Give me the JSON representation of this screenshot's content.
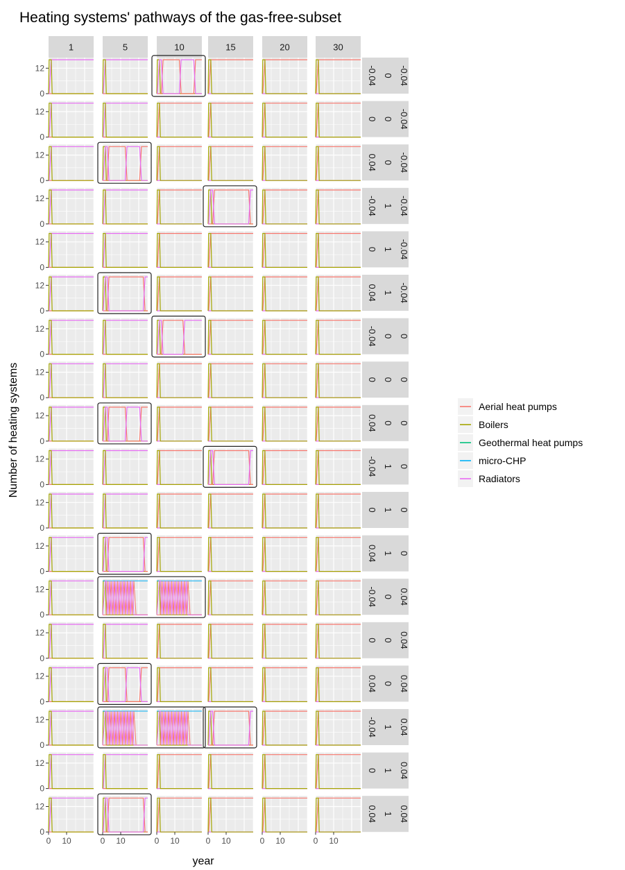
{
  "chart_data": {
    "type": "line",
    "title": "Heating systems' pathways of the gas-free-subset",
    "xlabel": "year",
    "ylabel": "Number of heating systems",
    "x_ticks": [
      0,
      10
    ],
    "y_ticks": [
      0,
      12
    ],
    "xlim": [
      0,
      25
    ],
    "ylim": [
      0,
      17
    ],
    "facet_columns": [
      "1",
      "5",
      "10",
      "15",
      "20",
      "30"
    ],
    "facet_rows": [
      [
        "-0.04",
        "0",
        "-0.04"
      ],
      [
        "0",
        "0",
        "-0.04"
      ],
      [
        "0.04",
        "0",
        "-0.04"
      ],
      [
        "-0.04",
        "1",
        "-0.04"
      ],
      [
        "0",
        "1",
        "-0.04"
      ],
      [
        "0.04",
        "1",
        "-0.04"
      ],
      [
        "-0.04",
        "0",
        "0"
      ],
      [
        "0",
        "0",
        "0"
      ],
      [
        "0.04",
        "0",
        "0"
      ],
      [
        "-0.04",
        "1",
        "0"
      ],
      [
        "0",
        "1",
        "0"
      ],
      [
        "0.04",
        "1",
        "0"
      ],
      [
        "-0.04",
        "0",
        "0.04"
      ],
      [
        "0",
        "0",
        "0.04"
      ],
      [
        "0.04",
        "0",
        "0.04"
      ],
      [
        "-0.04",
        "1",
        "0.04"
      ],
      [
        "0",
        "1",
        "0.04"
      ],
      [
        "0.04",
        "1",
        "0.04"
      ]
    ],
    "legend": {
      "position": "right",
      "entries": [
        {
          "name": "Aerial heat pumps",
          "color": "#F8766D"
        },
        {
          "name": "Boilers",
          "color": "#A3A500"
        },
        {
          "name": "Geothermal heat pumps",
          "color": "#00BF7D"
        },
        {
          "name": "micro-CHP",
          "color": "#00B0F6"
        },
        {
          "name": "Radiators",
          "color": "#E76BF3"
        }
      ]
    },
    "grid": true,
    "panel_background": "#EBEBEB",
    "strip_background": "#D9D9D9",
    "default_pathway": {
      "description_series": "boilers start at 16 and drop to 0 by year 2; radiators take over at 16",
      "boilers": [
        [
          0,
          0
        ],
        [
          0.3,
          16
        ],
        [
          1.5,
          16
        ],
        [
          2,
          0
        ],
        [
          25,
          0
        ]
      ],
      "radiators": [
        [
          0,
          0
        ],
        [
          0.3,
          0
        ],
        [
          1.5,
          16
        ],
        [
          25,
          16
        ]
      ],
      "aerial_heat_pumps": [
        [
          0,
          0
        ],
        [
          1.5,
          0
        ],
        [
          2,
          0
        ],
        [
          25,
          0
        ]
      ]
    },
    "highlighted_panels": [
      {
        "row": 0,
        "col": 2,
        "pattern": "switch",
        "switch_years": [
          3,
          13,
          21
        ]
      },
      {
        "row": 2,
        "col": 1,
        "pattern": "switch",
        "switch_years": [
          3,
          13,
          21
        ]
      },
      {
        "row": 3,
        "col": 3,
        "pattern": "switch",
        "switch_years": [
          3,
          23
        ]
      },
      {
        "row": 5,
        "col": 1,
        "pattern": "switch",
        "switch_years": [
          3,
          23
        ]
      },
      {
        "row": 6,
        "col": 2,
        "pattern": "switch",
        "switch_years": [
          3,
          15
        ]
      },
      {
        "row": 8,
        "col": 1,
        "pattern": "switch",
        "switch_years": [
          3,
          13,
          21
        ]
      },
      {
        "row": 9,
        "col": 3,
        "pattern": "switch",
        "switch_years": [
          3,
          23
        ]
      },
      {
        "row": 11,
        "col": 1,
        "pattern": "switch",
        "switch_years": [
          3,
          23
        ]
      },
      {
        "row": 12,
        "col": 1,
        "pattern": "oscillate",
        "span_cols": 2
      },
      {
        "row": 14,
        "col": 1,
        "pattern": "switch",
        "switch_years": [
          3,
          13,
          21
        ]
      },
      {
        "row": 15,
        "col": 1,
        "pattern": "oscillate",
        "span_cols": 2
      },
      {
        "row": 15,
        "col": 3,
        "pattern": "switch",
        "switch_years": [
          3,
          23
        ]
      },
      {
        "row": 17,
        "col": 1,
        "pattern": "switch",
        "switch_years": [
          3,
          23
        ]
      }
    ]
  }
}
